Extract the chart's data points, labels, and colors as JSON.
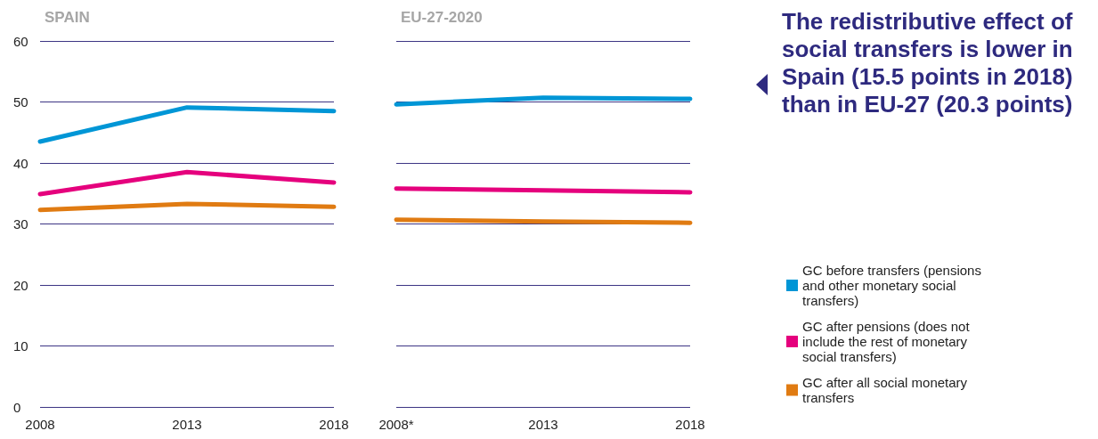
{
  "chart_data": [
    {
      "type": "line",
      "title": "SPAIN",
      "categories": [
        "2008",
        "2013",
        "2018"
      ],
      "ylim": [
        0,
        60
      ],
      "yticks": [
        0,
        10,
        20,
        30,
        40,
        50,
        60
      ],
      "grid": "y",
      "legend": false,
      "marker": "none",
      "line_style": "solid",
      "series": [
        {
          "color": "#0096d6",
          "values": [
            43.5,
            49.1,
            48.5
          ]
        },
        {
          "color": "#e5007d",
          "values": [
            34.9,
            38.5,
            36.8
          ]
        },
        {
          "color": "#e07b12",
          "values": [
            32.3,
            33.3,
            32.8
          ]
        }
      ]
    },
    {
      "type": "line",
      "title": "EU-27-2020",
      "categories": [
        "2008*",
        "2013",
        "2018"
      ],
      "ylim": [
        0,
        60
      ],
      "yticks": [
        0,
        10,
        20,
        30,
        40,
        50,
        60
      ],
      "grid": "y",
      "tick_labels": "x",
      "legend": "right",
      "marker": "none",
      "line_style": "solid",
      "annotations": [
        "The redistributive effect of social transfers is lower in Spain (15.5 points in 2018) than in EU-27 (20.3 points)"
      ],
      "series": [
        {
          "name": "GC before transfers (pensions and other monetary social transfers)",
          "color": "#0096d6",
          "values": [
            49.6,
            50.7,
            50.5
          ]
        },
        {
          "name": "GC after pensions (does not include the rest of monetary social transfers)",
          "color": "#e5007d",
          "values": [
            35.8,
            35.5,
            35.2
          ]
        },
        {
          "name": "GC after all social monetary transfers",
          "color": "#e07b12",
          "values": [
            30.7,
            30.4,
            30.2
          ]
        }
      ]
    }
  ]
}
